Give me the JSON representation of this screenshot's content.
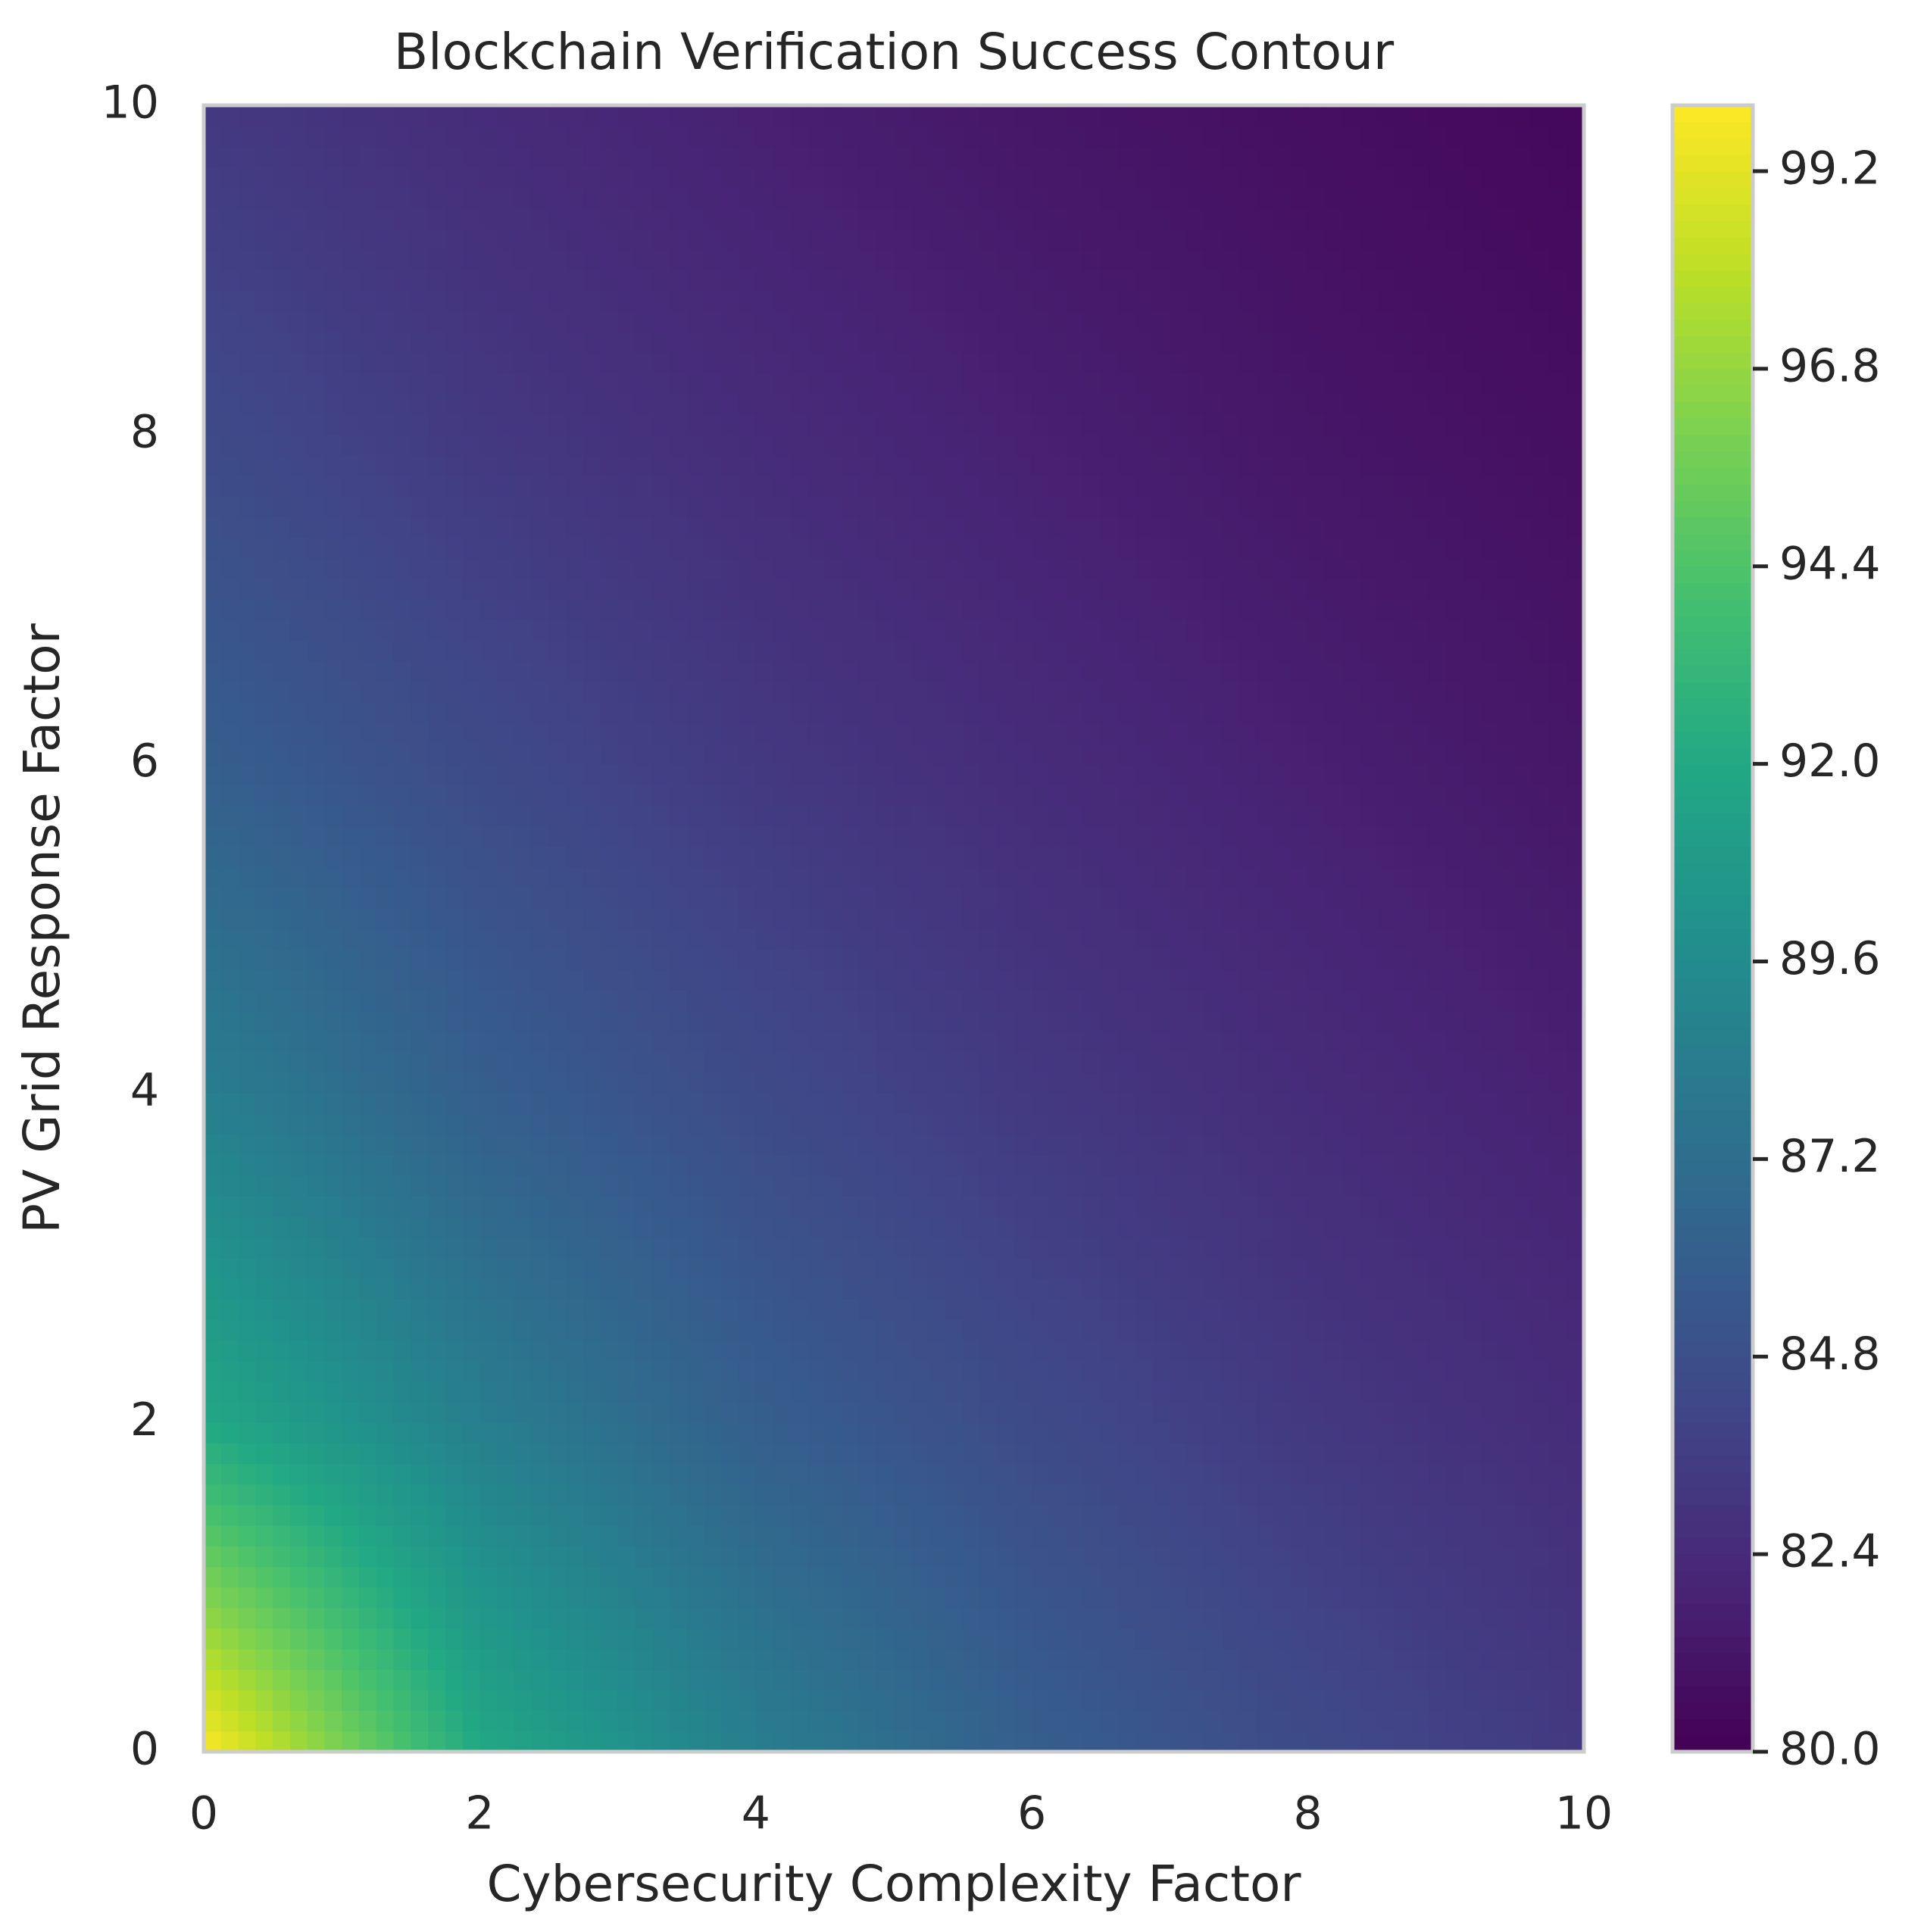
{
  "chart_data": {
    "type": "contour",
    "title": "Blockchain Verification Success Contour",
    "x_label": "Cybersecurity Complexity Factor",
    "y_label": "PV Grid Response Factor",
    "colormap": "viridis",
    "x": [
      0,
      2,
      4,
      6,
      8,
      10
    ],
    "y": [
      0,
      2,
      4,
      6,
      8,
      10
    ],
    "z": [
      [
        100,
        92,
        88.5,
        86,
        84.5,
        83.3
      ],
      [
        92,
        88.5,
        86,
        84.5,
        83.3,
        82.5
      ],
      [
        88.5,
        86,
        84.5,
        83.3,
        82.5,
        81.8
      ],
      [
        86,
        84.5,
        83.3,
        82.5,
        81.8,
        81.2
      ],
      [
        84.5,
        83.3,
        82.5,
        81.8,
        81.2,
        80.8
      ],
      [
        83.3,
        82.5,
        81.8,
        81.2,
        80.8,
        80.4
      ]
    ],
    "xlim": [
      0,
      10
    ],
    "ylim": [
      0,
      10
    ],
    "xticks": [
      0,
      2,
      4,
      6,
      8,
      10
    ],
    "yticks": [
      0,
      2,
      4,
      6,
      8,
      10
    ],
    "clim": [
      80,
      100
    ],
    "cticks": [
      {
        "value": 80,
        "label": "80.0"
      },
      82.4,
      84.8,
      87.2,
      89.6,
      {
        "value": 92,
        "label": "92.0"
      },
      94.4,
      96.8,
      99.2
    ],
    "grid": false
  }
}
